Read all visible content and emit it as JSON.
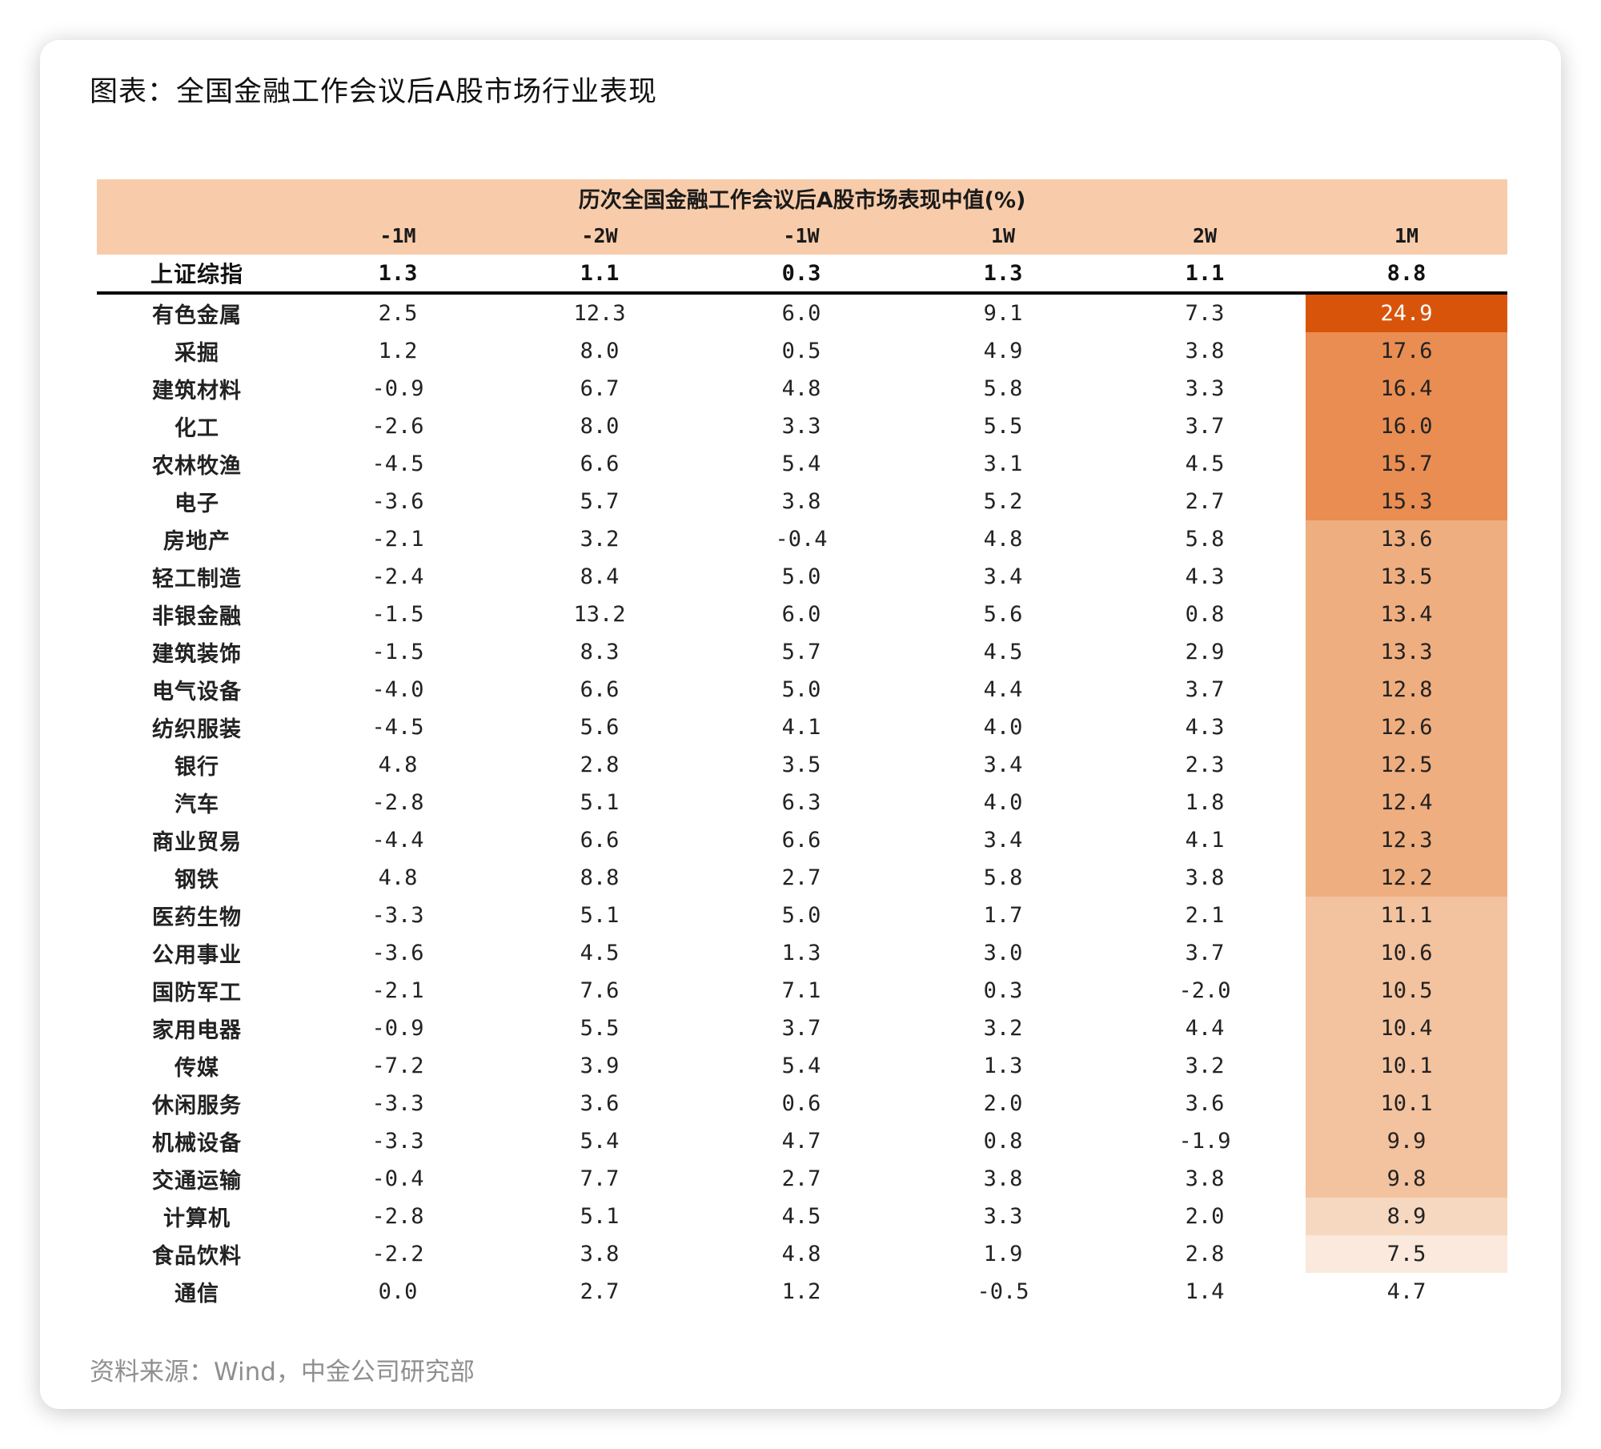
{
  "page": {
    "figure_title": "图表：全国金融工作会议后A股市场行业表现",
    "source": "资料来源：Wind，中金公司研究部"
  },
  "chart_data": {
    "type": "table",
    "title": "历次全国金融工作会议后A股市场表现中值(%)",
    "columns": [
      "-1M",
      "-2W",
      "-1W",
      "1W",
      "2W",
      "1M"
    ],
    "index_row": {
      "name": "上证综指",
      "values": [
        "1.3",
        "1.1",
        "0.3",
        "1.3",
        "1.1",
        "8.8"
      ]
    },
    "rows": [
      {
        "name": "有色金属",
        "values": [
          "2.5",
          "12.3",
          "6.0",
          "9.1",
          "7.3",
          "24.9"
        ]
      },
      {
        "name": "采掘",
        "values": [
          "1.2",
          "8.0",
          "0.5",
          "4.9",
          "3.8",
          "17.6"
        ]
      },
      {
        "name": "建筑材料",
        "values": [
          "-0.9",
          "6.7",
          "4.8",
          "5.8",
          "3.3",
          "16.4"
        ]
      },
      {
        "name": "化工",
        "values": [
          "-2.6",
          "8.0",
          "3.3",
          "5.5",
          "3.7",
          "16.0"
        ]
      },
      {
        "name": "农林牧渔",
        "values": [
          "-4.5",
          "6.6",
          "5.4",
          "3.1",
          "4.5",
          "15.7"
        ]
      },
      {
        "name": "电子",
        "values": [
          "-3.6",
          "5.7",
          "3.8",
          "5.2",
          "2.7",
          "15.3"
        ]
      },
      {
        "name": "房地产",
        "values": [
          "-2.1",
          "3.2",
          "-0.4",
          "4.8",
          "5.8",
          "13.6"
        ]
      },
      {
        "name": "轻工制造",
        "values": [
          "-2.4",
          "8.4",
          "5.0",
          "3.4",
          "4.3",
          "13.5"
        ]
      },
      {
        "name": "非银金融",
        "values": [
          "-1.5",
          "13.2",
          "6.0",
          "5.6",
          "0.8",
          "13.4"
        ]
      },
      {
        "name": "建筑装饰",
        "values": [
          "-1.5",
          "8.3",
          "5.7",
          "4.5",
          "2.9",
          "13.3"
        ]
      },
      {
        "name": "电气设备",
        "values": [
          "-4.0",
          "6.6",
          "5.0",
          "4.4",
          "3.7",
          "12.8"
        ]
      },
      {
        "name": "纺织服装",
        "values": [
          "-4.5",
          "5.6",
          "4.1",
          "4.0",
          "4.3",
          "12.6"
        ]
      },
      {
        "name": "银行",
        "values": [
          "4.8",
          "2.8",
          "3.5",
          "3.4",
          "2.3",
          "12.5"
        ]
      },
      {
        "name": "汽车",
        "values": [
          "-2.8",
          "5.1",
          "6.3",
          "4.0",
          "1.8",
          "12.4"
        ]
      },
      {
        "name": "商业贸易",
        "values": [
          "-4.4",
          "6.6",
          "6.6",
          "3.4",
          "4.1",
          "12.3"
        ]
      },
      {
        "name": "钢铁",
        "values": [
          "4.8",
          "8.8",
          "2.7",
          "5.8",
          "3.8",
          "12.2"
        ]
      },
      {
        "name": "医药生物",
        "values": [
          "-3.3",
          "5.1",
          "5.0",
          "1.7",
          "2.1",
          "11.1"
        ]
      },
      {
        "name": "公用事业",
        "values": [
          "-3.6",
          "4.5",
          "1.3",
          "3.0",
          "3.7",
          "10.6"
        ]
      },
      {
        "name": "国防军工",
        "values": [
          "-2.1",
          "7.6",
          "7.1",
          "0.3",
          "-2.0",
          "10.5"
        ]
      },
      {
        "name": "家用电器",
        "values": [
          "-0.9",
          "5.5",
          "3.7",
          "3.2",
          "4.4",
          "10.4"
        ]
      },
      {
        "name": "传媒",
        "values": [
          "-7.2",
          "3.9",
          "5.4",
          "1.3",
          "3.2",
          "10.1"
        ]
      },
      {
        "name": "休闲服务",
        "values": [
          "-3.3",
          "3.6",
          "0.6",
          "2.0",
          "3.6",
          "10.1"
        ]
      },
      {
        "name": "机械设备",
        "values": [
          "-3.3",
          "5.4",
          "4.7",
          "0.8",
          "-1.9",
          "9.9"
        ]
      },
      {
        "name": "交通运输",
        "values": [
          "-0.4",
          "7.7",
          "2.7",
          "3.8",
          "3.8",
          "9.8"
        ]
      },
      {
        "name": "计算机",
        "values": [
          "-2.8",
          "5.1",
          "4.5",
          "3.3",
          "2.0",
          "8.9"
        ]
      },
      {
        "name": "食品饮料",
        "values": [
          "-2.2",
          "3.8",
          "4.8",
          "1.9",
          "2.8",
          "7.5"
        ]
      },
      {
        "name": "通信",
        "values": [
          "0.0",
          "2.7",
          "1.2",
          "-0.5",
          "1.4",
          "4.7"
        ]
      }
    ],
    "highlight_colors": {
      "header_bg": "#f8ccaa",
      "heat_max": "#d9540b",
      "heat_scale": [
        "#e98d52",
        "#efae7f",
        "#f3c29e",
        "#f6d8c0",
        "#fae9dc"
      ]
    }
  }
}
